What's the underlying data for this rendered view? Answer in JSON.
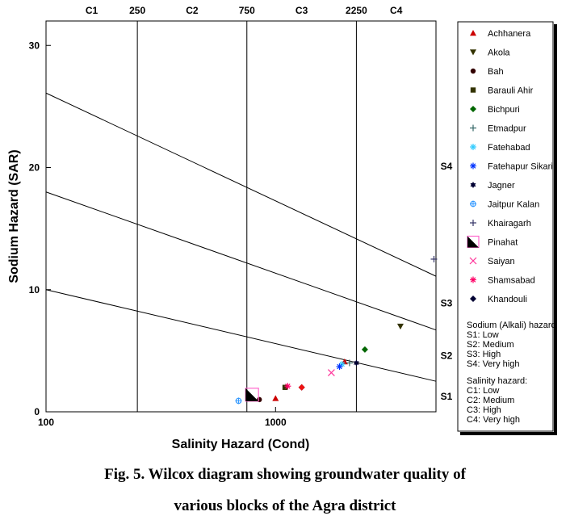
{
  "chart_data": {
    "type": "scatter",
    "xlabel": "Salinity Hazard (Cond)",
    "ylabel": "Sodium Hazard (SAR)",
    "x_scale": "log",
    "xlim": [
      100,
      5000
    ],
    "ylim": [
      0,
      32
    ],
    "x_ticks": [
      100,
      1000
    ],
    "y_ticks": [
      0,
      10,
      20,
      30
    ],
    "grid": false,
    "legend_position": "right",
    "salinity_boundaries": [
      250,
      750,
      2250
    ],
    "salinity_boundary_labels": [
      "250",
      "750",
      "2250"
    ],
    "salinity_classes": [
      "C1",
      "C2",
      "C3",
      "C4"
    ],
    "sodium_classes": [
      "S1",
      "S2",
      "S3",
      "S4"
    ],
    "sodium_lines": [
      {
        "from": [
          100,
          10
        ],
        "to": [
          5000,
          2.5
        ]
      },
      {
        "from": [
          100,
          18
        ],
        "to": [
          5000,
          6.7
        ]
      },
      {
        "from": [
          100,
          26.1
        ],
        "to": [
          5000,
          11.1
        ]
      }
    ],
    "series": [
      {
        "name": "Achhanera",
        "marker": "triangle",
        "color": "#cc0000",
        "points": [
          [
            1000,
            1.1
          ],
          [
            2000,
            4.1
          ]
        ]
      },
      {
        "name": "Akola",
        "marker": "triangle-down",
        "color": "#333300",
        "points": [
          [
            3500,
            7.0
          ]
        ]
      },
      {
        "name": "Bah",
        "marker": "circle",
        "color": "#330000",
        "points": [
          [
            850,
            1.0
          ]
        ]
      },
      {
        "name": "Barauli Ahir",
        "marker": "square",
        "color": "#333300",
        "points": [
          [
            1100,
            2.0
          ]
        ]
      },
      {
        "name": "Bichpuri",
        "marker": "diamond",
        "color": "#006600",
        "points": [
          [
            2450,
            5.1
          ]
        ]
      },
      {
        "name": "Etmadpur",
        "marker": "plus",
        "color": "#336666",
        "points": [
          [
            2100,
            4.0
          ]
        ]
      },
      {
        "name": "Fatehabad",
        "marker": "asterisk",
        "color": "#33ccff",
        "points": [
          [
            1950,
            3.9
          ]
        ]
      },
      {
        "name": "Fatehapur Sikari",
        "marker": "asterisk",
        "color": "#0033ff",
        "points": [
          [
            1900,
            3.7
          ]
        ]
      },
      {
        "name": "Jagner",
        "marker": "star",
        "color": "#000033",
        "points": [
          [
            2250,
            4.0
          ]
        ]
      },
      {
        "name": "Jaitpur Kalan",
        "marker": "crosshair-circle",
        "color": "#3399ff",
        "points": [
          [
            690,
            0.9
          ]
        ]
      },
      {
        "name": "Khairagarh",
        "marker": "plus",
        "color": "#333366",
        "points": [
          [
            4900,
            12.5
          ]
        ]
      },
      {
        "name": "Pinahat",
        "marker": "half-square",
        "color": "#ff66cc",
        "points": [
          [
            790,
            1.4
          ]
        ]
      },
      {
        "name": "Saiyan",
        "marker": "x",
        "color": "#ff3399",
        "points": [
          [
            1750,
            3.2
          ]
        ]
      },
      {
        "name": "Shamsabad",
        "marker": "asterisk",
        "color": "#ff0066",
        "points": [
          [
            1130,
            2.1
          ]
        ]
      },
      {
        "name": "Khandouli",
        "marker": "diamond",
        "color": "#000033",
        "points": [
          [
            1300,
            2.0
          ]
        ]
      }
    ],
    "extra_points": [
      {
        "marker": "diamond",
        "color": "#ee1111",
        "points": [
          [
            1300,
            2.0
          ]
        ]
      }
    ],
    "legend_notes": [
      "Sodium (Alkali) hazard",
      "S1: Low",
      "S2: Medium",
      "S3: High",
      "S4: Very high",
      "Salinity hazard:",
      "C1: Low",
      "C2: Medium",
      "C3: High",
      "C4: Very high"
    ]
  },
  "caption": {
    "line1": "Fig. 5. Wilcox diagram showing groundwater quality of",
    "line2": "various blocks of the Agra district"
  }
}
